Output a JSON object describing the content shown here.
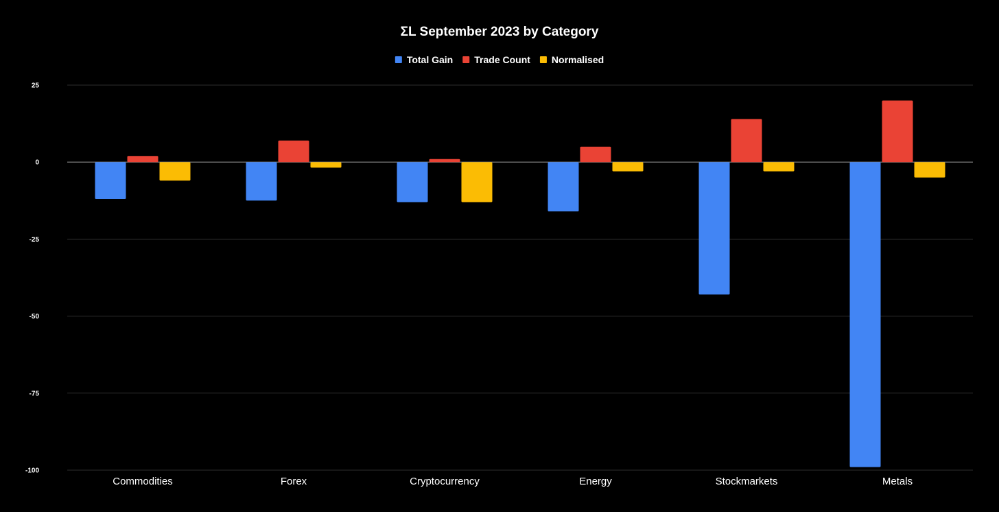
{
  "chart_data": {
    "type": "bar",
    "title": "ΣL September 2023 by Category",
    "categories": [
      "Commodities",
      "Forex",
      "Cryptocurrency",
      "Energy",
      "Stockmarkets",
      "Metals"
    ],
    "series": [
      {
        "name": "Total Gain",
        "color": "#4285f4",
        "values": [
          -12,
          -12.5,
          -13,
          -16,
          -43,
          -99
        ]
      },
      {
        "name": "Trade Count",
        "color": "#ea4335",
        "values": [
          2,
          7,
          1,
          5,
          14,
          20
        ]
      },
      {
        "name": "Normalised",
        "color": "#fbbc04",
        "values": [
          -6,
          -1.8,
          -13,
          -3,
          -3,
          -5
        ]
      }
    ],
    "ylim": [
      -100,
      25
    ],
    "yticks": [
      25,
      0,
      -25,
      -50,
      -75,
      -100
    ],
    "xlabel": "",
    "ylabel": "",
    "grid": true,
    "legend": "top-center",
    "background": "#000000"
  }
}
